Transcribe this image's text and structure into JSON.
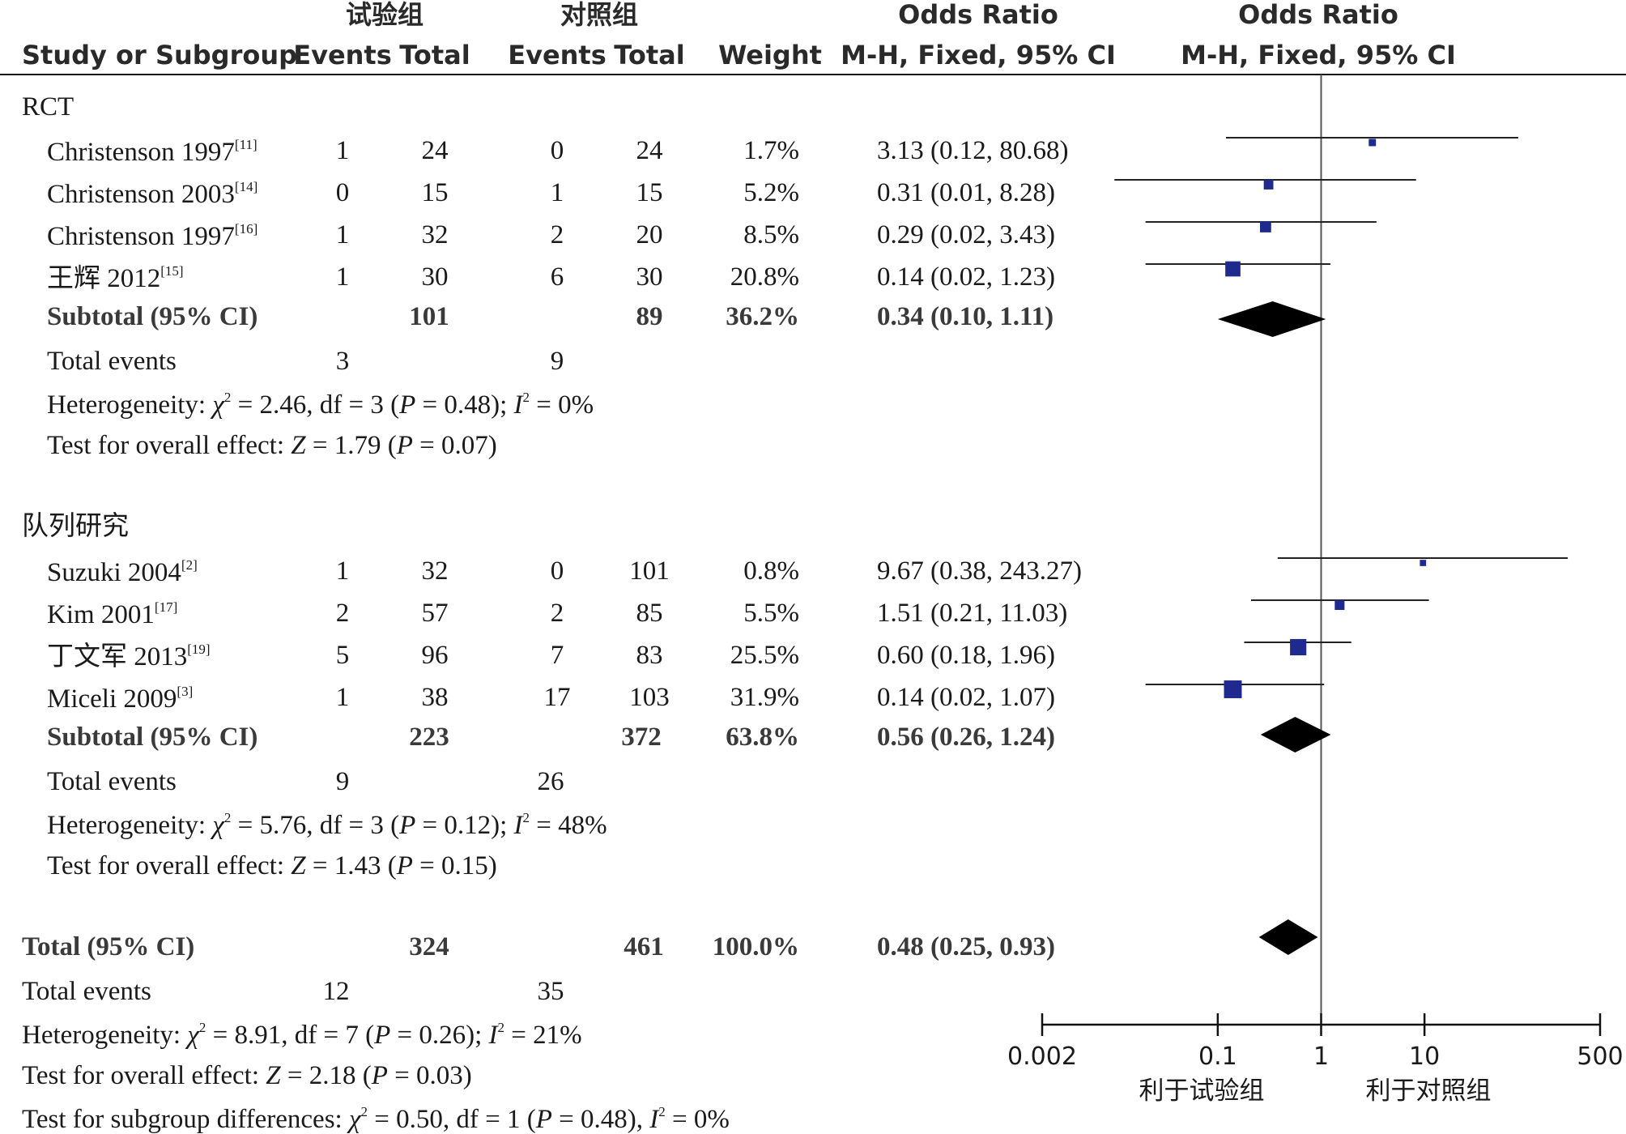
{
  "header": {
    "group_exp": "试验组",
    "group_ctrl": "对照组",
    "study_col": "Study or Subgroup",
    "events": "Events",
    "total": "Total",
    "weight": "Weight",
    "or_title": "Odds Ratio",
    "or_method": "M-H, Fixed, 95% CI"
  },
  "chart_data": {
    "type": "forest",
    "scale": "log",
    "xlim": [
      0.002,
      500
    ],
    "ticks": [
      "0.002",
      "0.1",
      "1",
      "10",
      "500"
    ],
    "favours_left": "利于试验组",
    "favours_right": "利于对照组",
    "subgroups": [
      {
        "name": "RCT",
        "studies": [
          {
            "name": "Christenson 1997",
            "ref": "[11]",
            "e_ev": "1",
            "e_tot": "24",
            "c_ev": "0",
            "c_tot": "24",
            "weight": "1.7%",
            "ci_text": "3.13 (0.12, 80.68)",
            "or": 3.13,
            "lo": 0.12,
            "hi": 80.68,
            "w": 1.7
          },
          {
            "name": "Christenson 2003",
            "ref": "[14]",
            "e_ev": "0",
            "e_tot": "15",
            "c_ev": "1",
            "c_tot": "15",
            "weight": "5.2%",
            "ci_text": "0.31 (0.01, 8.28)",
            "or": 0.31,
            "lo": 0.01,
            "hi": 8.28,
            "w": 5.2
          },
          {
            "name": "Christenson 1997",
            "ref": "[16]",
            "e_ev": "1",
            "e_tot": "32",
            "c_ev": "2",
            "c_tot": "20",
            "weight": "8.5%",
            "ci_text": "0.29 (0.02, 3.43)",
            "or": 0.29,
            "lo": 0.02,
            "hi": 3.43,
            "w": 8.5
          },
          {
            "name": "王辉 2012",
            "ref": "[15]",
            "e_ev": "1",
            "e_tot": "30",
            "c_ev": "6",
            "c_tot": "30",
            "weight": "20.8%",
            "ci_text": "0.14 (0.02, 1.23)",
            "or": 0.14,
            "lo": 0.02,
            "hi": 1.23,
            "w": 20.8
          }
        ],
        "subtotal": {
          "label": "Subtotal (95% CI)",
          "e_tot": "101",
          "c_tot": "89",
          "weight": "36.2%",
          "ci_text": "0.34 (0.10, 1.11)",
          "or": 0.34,
          "lo": 0.1,
          "hi": 1.11
        },
        "total_events": {
          "label": "Total events",
          "e": "3",
          "c": "9"
        },
        "heterogeneity": {
          "prefix": "Heterogeneity: ",
          "chi": "χ",
          "chi_val": " = 2.46, df = 3 (",
          "p": "P",
          "p_val": " = 0.48); ",
          "i": "I",
          "i_val": " = 0%"
        },
        "overall": {
          "prefix": "Test for overall effect: ",
          "z": "Z",
          "z_val": " = 1.79 (",
          "p": "P",
          "p_val": " = 0.07)"
        }
      },
      {
        "name": "队列研究",
        "studies": [
          {
            "name": "Suzuki 2004",
            "ref": "[2]",
            "e_ev": "1",
            "e_tot": "32",
            "c_ev": "0",
            "c_tot": "101",
            "weight": "0.8%",
            "ci_text": "9.67 (0.38, 243.27)",
            "or": 9.67,
            "lo": 0.38,
            "hi": 243.27,
            "w": 0.8
          },
          {
            "name": "Kim 2001",
            "ref": "[17]",
            "e_ev": "2",
            "e_tot": "57",
            "c_ev": "2",
            "c_tot": "85",
            "weight": "5.5%",
            "ci_text": "1.51 (0.21, 11.03)",
            "or": 1.51,
            "lo": 0.21,
            "hi": 11.03,
            "w": 5.5
          },
          {
            "name": "丁文军 2013",
            "ref": "[19]",
            "e_ev": "5",
            "e_tot": "96",
            "c_ev": "7",
            "c_tot": "83",
            "weight": "25.5%",
            "ci_text": "0.60 (0.18, 1.96)",
            "or": 0.6,
            "lo": 0.18,
            "hi": 1.96,
            "w": 25.5
          },
          {
            "name": "Miceli 2009",
            "ref": "[3]",
            "e_ev": "1",
            "e_tot": "38",
            "c_ev": "17",
            "c_tot": "103",
            "weight": "31.9%",
            "ci_text": "0.14 (0.02, 1.07)",
            "or": 0.14,
            "lo": 0.02,
            "hi": 1.07,
            "w": 31.9
          }
        ],
        "subtotal": {
          "label": "Subtotal (95% CI)",
          "e_tot": "223",
          "c_tot": "372",
          "weight": "63.8%",
          "ci_text": "0.56 (0.26, 1.24)",
          "or": 0.56,
          "lo": 0.26,
          "hi": 1.24
        },
        "total_events": {
          "label": "Total events",
          "e": "9",
          "c": "26"
        },
        "heterogeneity": {
          "prefix": "Heterogeneity: ",
          "chi": "χ",
          "chi_val": " = 5.76, df = 3 (",
          "p": "P",
          "p_val": " = 0.12); ",
          "i": "I",
          "i_val": " = 48%"
        },
        "overall": {
          "prefix": "Test for overall effect: ",
          "z": "Z",
          "z_val": " = 1.43 (",
          "p": "P",
          "p_val": " = 0.15)"
        }
      }
    ],
    "total": {
      "label": "Total (95% CI)",
      "e_tot": "324",
      "c_tot": "461",
      "weight": "100.0%",
      "ci_text": "0.48 (0.25, 0.93)",
      "or": 0.48,
      "lo": 0.25,
      "hi": 0.93
    },
    "total_events": {
      "label": "Total events",
      "e": "12",
      "c": "35"
    },
    "heterogeneity": {
      "prefix": "Heterogeneity: ",
      "chi": "χ",
      "chi_val": " = 8.91, df = 7 (",
      "p": "P",
      "p_val": " = 0.26); ",
      "i": "I",
      "i_val": " = 21%"
    },
    "overall": {
      "prefix": "Test for overall effect: ",
      "z": "Z",
      "z_val": " = 2.18 (",
      "p": "P",
      "p_val": " = 0.03)"
    },
    "subgroup_diff": {
      "prefix": "Test for subgroup differences: ",
      "chi": "χ",
      "chi_val": " = 0.50, df = 1 (",
      "p": "P",
      "p_val": " = 0.48), ",
      "i": "I",
      "i_val": " = 0%"
    },
    "colors": {
      "marker": "#1f2a8f",
      "diamond": "#000000",
      "line": "#222222"
    }
  }
}
